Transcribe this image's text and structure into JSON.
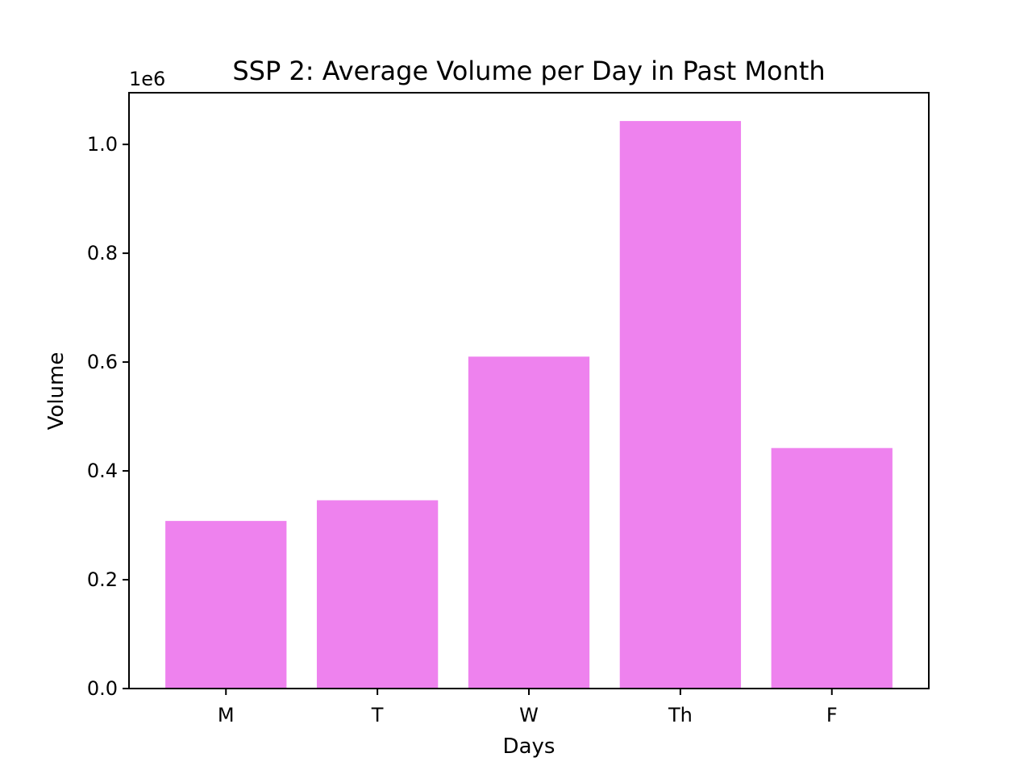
{
  "chart_data": {
    "type": "bar",
    "title": "SSP 2: Average Volume per Day in Past Month",
    "xlabel": "Days",
    "ylabel": "Volume",
    "y_offset_label": "1e6",
    "categories": [
      "M",
      "T",
      "W",
      "Th",
      "F"
    ],
    "values": [
      308000,
      346000,
      610000,
      1043000,
      442000
    ],
    "ylim": [
      0,
      1095000
    ],
    "y_ticks": [
      {
        "value": 0,
        "label": "0.0"
      },
      {
        "value": 200000,
        "label": "0.2"
      },
      {
        "value": 400000,
        "label": "0.4"
      },
      {
        "value": 600000,
        "label": "0.6"
      },
      {
        "value": 800000,
        "label": "0.8"
      },
      {
        "value": 1000000,
        "label": "1.0"
      }
    ],
    "bar_color": "#ee82ee",
    "grid": false,
    "legend": "none"
  }
}
